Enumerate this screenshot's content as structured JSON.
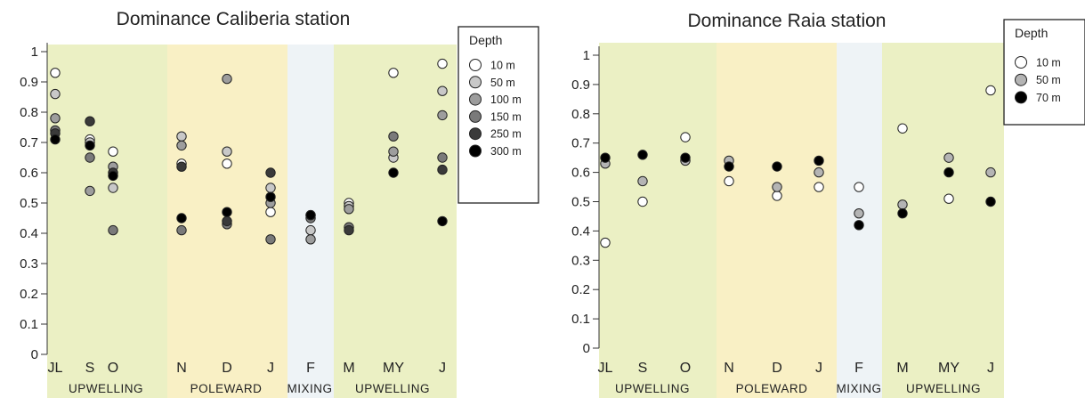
{
  "chart_data": [
    {
      "type": "scatter",
      "title": "Dominance Caliberia station",
      "categories": [
        "JL",
        "S",
        "O",
        "N",
        "D",
        "J",
        "F",
        "M",
        "MY",
        "J"
      ],
      "ylim": [
        0,
        1
      ],
      "yticks": [
        "0",
        "0.1",
        "0.2",
        "0.3",
        "0.4",
        "0.5",
        "0.6",
        "0.7",
        "0.8",
        "0.9",
        "1"
      ],
      "grid": false,
      "periods": [
        {
          "label": "UPWELLING",
          "start": 0,
          "end": 2,
          "color": "#ebf0c4"
        },
        {
          "label": "POLEWARD",
          "start": 3,
          "end": 5,
          "color": "#f9f0c5"
        },
        {
          "label": "MIXING",
          "start": 6,
          "end": 6,
          "color": "#eef3f6"
        },
        {
          "label": "UPWELLING",
          "start": 7,
          "end": 9,
          "color": "#ebf0c4"
        }
      ],
      "legend": {
        "title": "Depth",
        "placement": "right"
      },
      "series": [
        {
          "name": "10 m",
          "color": "#ffffff",
          "values": [
            0.93,
            0.71,
            0.67,
            0.63,
            0.63,
            0.47,
            null,
            0.5,
            0.93,
            0.96
          ]
        },
        {
          "name": "50 m",
          "color": "#c8c8c8",
          "values": [
            0.86,
            0.7,
            0.55,
            0.72,
            0.67,
            0.55,
            0.41,
            0.49,
            0.65,
            0.87
          ]
        },
        {
          "name": "100 m",
          "color": "#9d9d9d",
          "values": [
            0.78,
            0.54,
            0.62,
            0.69,
            0.91,
            0.5,
            0.38,
            0.48,
            0.67,
            0.79
          ]
        },
        {
          "name": "150 m",
          "color": "#7a7a7a",
          "values": [
            0.74,
            0.65,
            0.41,
            0.41,
            0.43,
            0.38,
            0.45,
            0.42,
            0.72,
            0.65
          ]
        },
        {
          "name": "250 m",
          "color": "#3a3a3a",
          "values": [
            0.73,
            0.77,
            0.6,
            0.62,
            0.44,
            0.6,
            0.46,
            0.41,
            null,
            0.61
          ]
        },
        {
          "name": "300 m",
          "color": "#000000",
          "values": [
            0.71,
            0.69,
            0.59,
            0.45,
            0.47,
            0.52,
            0.46,
            null,
            0.6,
            0.44
          ]
        }
      ]
    },
    {
      "type": "scatter",
      "title": "Dominance Raia station",
      "categories": [
        "JL",
        "S",
        "O",
        "N",
        "D",
        "J",
        "F",
        "M",
        "MY",
        "J"
      ],
      "ylim": [
        0,
        1
      ],
      "yticks": [
        "0",
        "0.1",
        "0.2",
        "0.3",
        "0.4",
        "0.5",
        "0.6",
        "0.7",
        "0.8",
        "0.9",
        "1"
      ],
      "grid": false,
      "periods": [
        {
          "label": "UPWELLING",
          "start": 0,
          "end": 2,
          "color": "#ebf0c4"
        },
        {
          "label": "POLEWARD",
          "start": 3,
          "end": 5,
          "color": "#f9f0c5"
        },
        {
          "label": "MIXING",
          "start": 6,
          "end": 6,
          "color": "#eef3f6"
        },
        {
          "label": "UPWELLING",
          "start": 7,
          "end": 9,
          "color": "#ebf0c4"
        }
      ],
      "legend": {
        "title": "Depth",
        "placement": "right"
      },
      "series": [
        {
          "name": "10 m",
          "color": "#ffffff",
          "values": [
            0.36,
            0.5,
            0.72,
            0.57,
            0.52,
            0.55,
            0.55,
            0.75,
            0.51,
            0.88
          ]
        },
        {
          "name": "50 m",
          "color": "#b4b4b4",
          "values": [
            0.63,
            0.57,
            0.64,
            0.64,
            0.55,
            0.6,
            0.46,
            0.49,
            0.65,
            0.6
          ]
        },
        {
          "name": "70 m",
          "color": "#000000",
          "values": [
            0.65,
            0.66,
            0.65,
            0.62,
            0.62,
            0.64,
            0.42,
            0.46,
            0.6,
            0.5
          ]
        }
      ]
    }
  ]
}
